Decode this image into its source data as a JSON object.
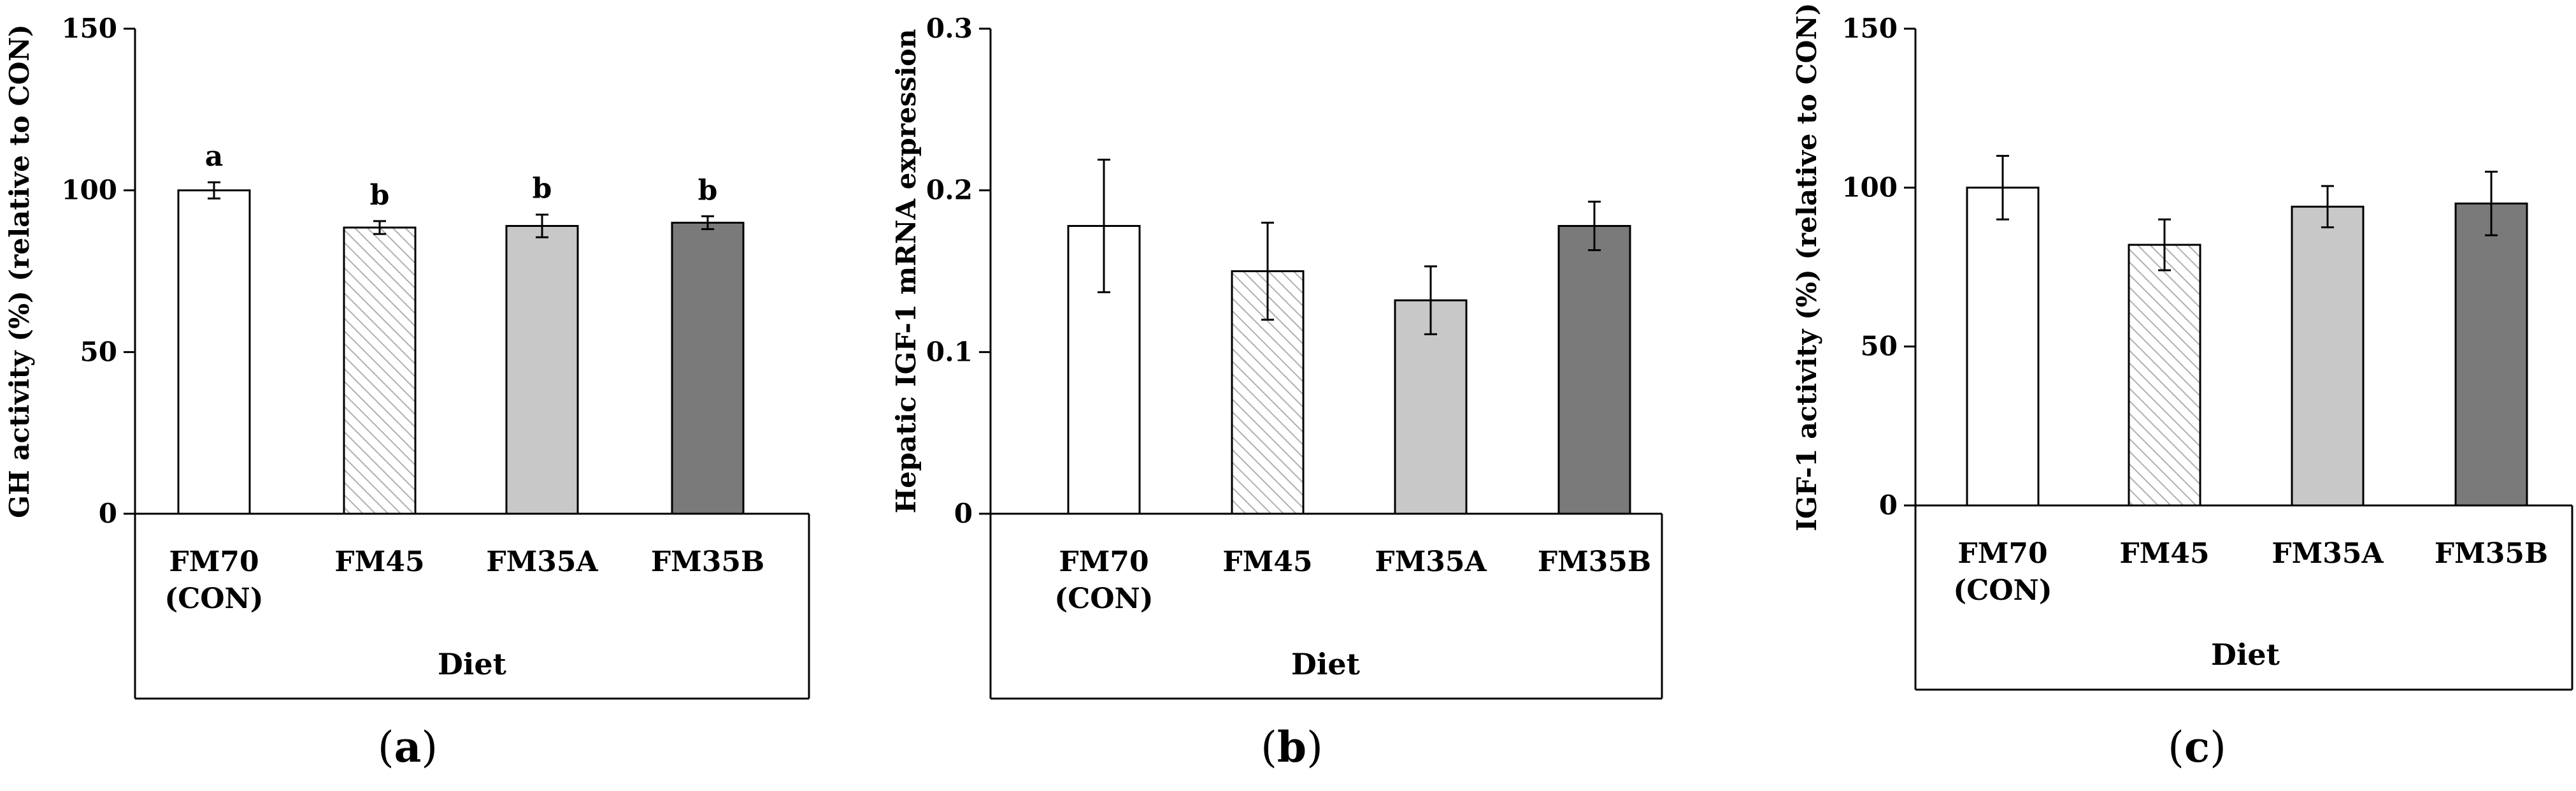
{
  "chart_data": [
    {
      "type": "bar",
      "panel_label": "a",
      "ylabel": "GH activity (%) (relative to CON)",
      "xlabel": "Diet",
      "ylim": [
        0,
        150
      ],
      "yticks": [
        0,
        50,
        100,
        150
      ],
      "categories": [
        [
          "FM70",
          "(CON)"
        ],
        [
          "FM45"
        ],
        [
          "FM35A"
        ],
        [
          "FM35B"
        ]
      ],
      "values": [
        100,
        88.5,
        89,
        90
      ],
      "errors": [
        2.5,
        2,
        3.5,
        2
      ],
      "significance": [
        "a",
        "b",
        "b",
        "b"
      ],
      "fills": [
        "#ffffff",
        "hatch",
        "#c8c8c8",
        "#7a7a7a"
      ]
    },
    {
      "type": "bar",
      "panel_label": "b",
      "ylabel": "Hepatic IGF-1 mRNA expression",
      "xlabel": "Diet",
      "ylim": [
        0,
        0.3
      ],
      "yticks": [
        0,
        0.1,
        0.2,
        0.3
      ],
      "categories": [
        [
          "FM70",
          "(CON)"
        ],
        [
          "FM45"
        ],
        [
          "FM35A"
        ],
        [
          "FM35B"
        ]
      ],
      "values": [
        0.178,
        0.15,
        0.132,
        0.178
      ],
      "errors": [
        0.041,
        0.03,
        0.021,
        0.015
      ],
      "significance": [],
      "fills": [
        "#ffffff",
        "hatch",
        "#c8c8c8",
        "#7a7a7a"
      ]
    },
    {
      "type": "bar",
      "panel_label": "c",
      "ylabel": "IGF-1 activity (%) (relative to CON)",
      "xlabel": "Diet",
      "ylim": [
        0,
        150
      ],
      "yticks": [
        0,
        50,
        100,
        150
      ],
      "categories": [
        [
          "FM70",
          "(CON)"
        ],
        [
          "FM45"
        ],
        [
          "FM35A"
        ],
        [
          "FM35B"
        ]
      ],
      "values": [
        100,
        82,
        94,
        95
      ],
      "errors": [
        10,
        8,
        6.5,
        10
      ],
      "significance": [],
      "fills": [
        "#ffffff",
        "hatch",
        "#c8c8c8",
        "#7a7a7a"
      ]
    }
  ]
}
